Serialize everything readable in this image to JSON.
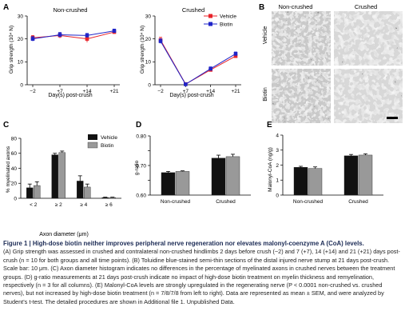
{
  "panel_letters": [
    "A",
    "B",
    "C",
    "D",
    "E"
  ],
  "panel_a": {
    "left_title": "Non-crushed",
    "right_title": "Crushed",
    "ylabel": "Grip strength (10⁴ N)",
    "xlabel": "Day(s) post-crush",
    "legend": [
      "Vehicle",
      "Biotin"
    ]
  },
  "panel_b": {
    "col_titles": [
      "Non-crushed",
      "Crushed"
    ],
    "row_labels": [
      "Vehicle",
      "Biotin"
    ]
  },
  "panel_c": {
    "legend": [
      "Vehicle",
      "Biotin"
    ]
  },
  "chart_data": [
    {
      "panel": "A-left",
      "type": "line",
      "title": "Non-crushed",
      "xlabel": "Day(s) post-crush",
      "ylabel": "Grip strength (10⁴ N)",
      "categories": [
        "−2",
        "+7",
        "+14",
        "+21"
      ],
      "ylim": [
        0,
        30
      ],
      "yticks": [
        0,
        10,
        20,
        30
      ],
      "series": [
        {
          "name": "Vehicle",
          "color": "#e8232a",
          "values": [
            20.5,
            21.5,
            20.0,
            23.0
          ],
          "errors": [
            1.0,
            1.2,
            1.5,
            0.8
          ]
        },
        {
          "name": "Biotin",
          "color": "#1f24c8",
          "values": [
            20.0,
            21.8,
            21.5,
            23.5
          ],
          "errors": [
            1.0,
            1.0,
            0.9,
            0.8
          ]
        }
      ]
    },
    {
      "panel": "A-right",
      "type": "line",
      "title": "Crushed",
      "xlabel": "Day(s) post-crush",
      "ylabel": "Grip strength (10⁴ N)",
      "categories": [
        "−2",
        "+7",
        "+14",
        "+21"
      ],
      "ylim": [
        0,
        30
      ],
      "yticks": [
        0,
        10,
        20,
        30
      ],
      "series": [
        {
          "name": "Vehicle",
          "color": "#e8232a",
          "values": [
            19.5,
            0.3,
            6.5,
            12.5
          ],
          "errors": [
            1.2,
            0.2,
            0.7,
            0.8
          ]
        },
        {
          "name": "Biotin",
          "color": "#1f24c8",
          "values": [
            19.0,
            0.2,
            7.0,
            13.5
          ],
          "errors": [
            1.0,
            0.2,
            0.8,
            0.8
          ]
        }
      ]
    },
    {
      "panel": "C",
      "type": "bar",
      "xlabel": "Axon diameter (μm)",
      "ylabel": "% myelinated axons",
      "categories": [
        "< 2",
        "≥ 2",
        "≥ 4",
        "≥ 6"
      ],
      "ylim": [
        0,
        80
      ],
      "yticks": [
        0,
        20,
        40,
        60,
        80
      ],
      "series": [
        {
          "name": "Vehicle",
          "color": "#111111",
          "values": [
            14,
            58,
            23,
            1
          ],
          "errors": [
            5,
            2,
            7,
            0.5
          ]
        },
        {
          "name": "Biotin",
          "color": "#999999",
          "values": [
            17,
            61,
            15,
            1
          ],
          "errors": [
            5,
            2,
            4,
            0.5
          ]
        }
      ]
    },
    {
      "panel": "D",
      "type": "bar",
      "ylabel": "g-ratio",
      "categories": [
        "Non-crushed",
        "Crushed"
      ],
      "ylim": [
        0.6,
        0.8
      ],
      "yticks": [
        0.6,
        0.65,
        0.7,
        0.75,
        0.8
      ],
      "ytick_labels": [
        "0.60",
        "",
        "0.70",
        "",
        "0.80"
      ],
      "series": [
        {
          "name": "Vehicle",
          "color": "#111111",
          "values": [
            0.676,
            0.725
          ],
          "errors": [
            0.004,
            0.01
          ]
        },
        {
          "name": "Biotin",
          "color": "#999999",
          "values": [
            0.68,
            0.73
          ],
          "errors": [
            0.002,
            0.008
          ]
        }
      ]
    },
    {
      "panel": "E",
      "type": "bar",
      "ylabel": "Malonyl-CoA (ng/g)",
      "categories": [
        "Non-crushed",
        "Crushed"
      ],
      "ylim": [
        0,
        4
      ],
      "yticks": [
        0,
        1,
        2,
        3,
        4
      ],
      "series": [
        {
          "name": "Vehicle",
          "color": "#111111",
          "values": [
            1.85,
            2.62
          ],
          "errors": [
            0.07,
            0.09
          ]
        },
        {
          "name": "Biotin",
          "color": "#999999",
          "values": [
            1.78,
            2.67
          ],
          "errors": [
            0.1,
            0.08
          ]
        }
      ]
    }
  ],
  "caption": {
    "title": "Figure 1 | High-dose biotin neither improves peripheral nerve regeneration nor elevates malonyl-coenzyme A (CoA) levels.",
    "body": "(A) Grip strength was assessed in crushed and contralateral non-crushed hindlimbs 2 days before crush (−2) and 7 (+7), 14 (+14) and 21 (+21) days post-crush (n = 10 for both groups and all time points). (B) Toluidine blue-stained semi-thin sections of the distal injured nerve stump at 21 days post-crush. Scale bar: 10 μm. (C) Axon diameter histogram indicates no differences in the percentage of myelinated axons in crushed nerves between the treatment groups. (D) g-ratio measurements at 21 days post-crush indicate no impact of high-dose biotin treatment on myelin thickness and remyelination, respectively (n = 3 for all columns). (E) Malonyl-CoA levels are strongly upregulated in the regenerating nerve (P < 0.0001 non-crushed vs. crushed nerves), but not increased by high-dose biotin treatment (n = 7/8/7/8 from left to right). Data are represented as mean ± SEM, and were analyzed by Student’s t-test. The detailed procedures are shown in Additional file 1. Unpublished Data."
  }
}
